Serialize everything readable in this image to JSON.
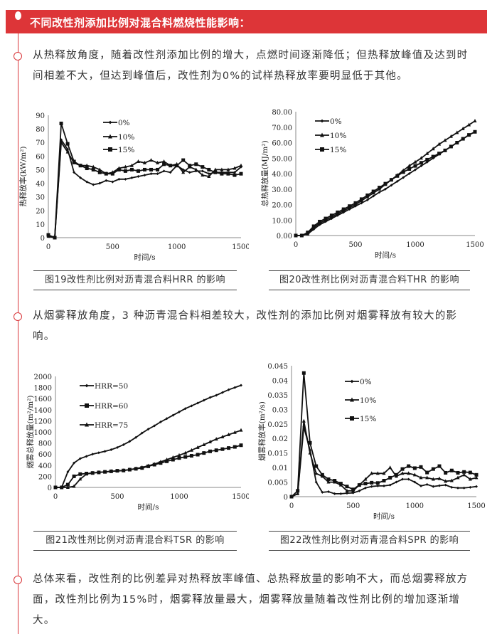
{
  "header": {
    "title": "不同改性剂添加比例对混合料燃烧性能影响："
  },
  "paragraphs": [
    "从热释放角度，随着改性剂添加比例的增大，点燃时间逐渐降低；但热释放峰值及达到时间相差不大，但达到峰值后，改性剂为0%的试样热释放率要明显低于其他。",
    "从烟雾释放角度，3 种沥青混合料相差较大，改性剂的添加比例对烟雾释放有较大的影响。",
    "总体来看，改性剂的比例差异对热释放率峰值、总热释放量的影响不大，而总烟雾释放方面，改性剂比例为15%时，烟雾释放量最大，烟雾释放量随着改性剂比例的增加逐渐增大。"
  ],
  "colors": {
    "accent": "#dd3538",
    "line": "#111111"
  },
  "chart_data": [
    {
      "type": "line",
      "caption": "图19改性剂比例对沥青混合料HRR 的影响",
      "xlabel": "时间/s",
      "ylabel": "热释放率(kW/m²)",
      "xlim": [
        0,
        1500
      ],
      "ylim": [
        0,
        90
      ],
      "xticks": [
        "0",
        "500",
        "1000",
        "1500"
      ],
      "yticks": [
        "0",
        "10",
        "20",
        "30",
        "40",
        "50",
        "60",
        "70",
        "80",
        "90"
      ],
      "legend": "top-center",
      "x": [
        0,
        50,
        100,
        150,
        200,
        250,
        300,
        350,
        400,
        450,
        500,
        550,
        600,
        650,
        700,
        750,
        800,
        850,
        900,
        950,
        1000,
        1050,
        1100,
        1150,
        1200,
        1250,
        1300,
        1350,
        1400,
        1450,
        1500
      ],
      "series": [
        {
          "name": "0%",
          "marker": "diamond",
          "values": [
            1,
            0,
            72,
            65,
            48,
            44,
            41,
            39,
            40,
            42,
            41,
            43,
            43,
            44,
            45,
            46,
            47,
            47,
            49,
            48,
            53,
            50,
            48,
            49,
            49,
            47,
            48,
            48,
            48,
            48,
            52
          ]
        },
        {
          "name": "10%",
          "marker": "triangle",
          "values": [
            1,
            0,
            70,
            63,
            55,
            53,
            53,
            52,
            50,
            47,
            48,
            51,
            52,
            53,
            56,
            55,
            57,
            55,
            56,
            53,
            54,
            48,
            52,
            50,
            46,
            45,
            50,
            50,
            50,
            51,
            53
          ]
        },
        {
          "name": "15%",
          "marker": "square",
          "values": [
            2,
            0,
            84,
            69,
            56,
            53,
            51,
            50,
            48,
            47,
            47,
            50,
            49,
            50,
            49,
            50,
            50,
            50,
            54,
            53,
            53,
            57,
            53,
            54,
            52,
            50,
            48,
            47,
            47,
            46,
            47
          ]
        }
      ]
    },
    {
      "type": "line",
      "caption": "图20改性剂比例对沥青混合料THR 的影响",
      "xlabel": "时间/s",
      "ylabel": "总热释放量(MJ/m²)",
      "xlim": [
        0,
        1500
      ],
      "ylim": [
        0,
        80
      ],
      "xticks": [
        "0",
        "500",
        "1000",
        "1500"
      ],
      "yticks": [
        "0.00",
        "10.00",
        "20.00",
        "30.00",
        "40.00",
        "50.00",
        "60.00",
        "70.00",
        "80.00"
      ],
      "legend": "top-left",
      "x": [
        0,
        50,
        100,
        150,
        200,
        250,
        300,
        350,
        400,
        450,
        500,
        550,
        600,
        650,
        700,
        750,
        800,
        850,
        900,
        950,
        1000,
        1050,
        1100,
        1150,
        1200,
        1250,
        1300,
        1350,
        1400,
        1450,
        1500
      ],
      "series": [
        {
          "name": "0%",
          "marker": "diamond",
          "values": [
            0,
            0,
            1,
            4,
            7,
            9,
            11,
            13,
            15,
            17,
            19,
            21,
            23,
            25.5,
            28,
            30,
            32.5,
            35,
            37.5,
            40,
            42.5,
            45,
            47.5,
            50,
            52.5,
            55,
            57.5,
            60,
            62.5,
            65,
            67
          ]
        },
        {
          "name": "10%",
          "marker": "triangle",
          "values": [
            0,
            0,
            1,
            5,
            8,
            10,
            12,
            14,
            16,
            18,
            20,
            22.5,
            25,
            27.5,
            30,
            33,
            36,
            39,
            42,
            45,
            47.5,
            50,
            53,
            56,
            59,
            61.5,
            64,
            66.5,
            69,
            71.5,
            74
          ]
        },
        {
          "name": "15%",
          "marker": "square",
          "values": [
            0,
            0,
            2,
            6,
            9,
            11,
            13,
            15,
            17,
            19,
            21,
            23.5,
            26,
            28.5,
            31,
            33.5,
            36,
            38.5,
            41,
            43,
            45,
            47,
            49,
            51,
            53,
            55,
            57.5,
            60,
            62.5,
            65,
            67
          ]
        }
      ]
    },
    {
      "type": "line",
      "caption": "图21改性剂比例对沥青混合料TSR 的影响",
      "xlabel": "时间/s",
      "ylabel": "烟雾总释放量(m²/m²)",
      "xlim": [
        0,
        1500
      ],
      "ylim": [
        0,
        2000
      ],
      "xticks": [
        "0",
        "500",
        "1000",
        "1500"
      ],
      "yticks": [
        "0",
        "200",
        "400",
        "600",
        "800",
        "1000",
        "1200",
        "1400",
        "1600",
        "1800",
        "2000"
      ],
      "legend": "top-left",
      "x": [
        0,
        50,
        100,
        150,
        200,
        250,
        300,
        350,
        400,
        450,
        500,
        550,
        600,
        650,
        700,
        750,
        800,
        850,
        900,
        950,
        1000,
        1050,
        1100,
        1150,
        1200,
        1250,
        1300,
        1350,
        1400,
        1450,
        1500
      ],
      "series": [
        {
          "name": "HRR=50",
          "marker": "diamond",
          "values": [
            0,
            0,
            280,
            440,
            520,
            560,
            600,
            625,
            650,
            680,
            720,
            770,
            830,
            900,
            980,
            1050,
            1110,
            1180,
            1240,
            1300,
            1360,
            1420,
            1470,
            1520,
            1570,
            1620,
            1660,
            1710,
            1760,
            1800,
            1840
          ]
        },
        {
          "name": "HRR=60",
          "marker": "square",
          "values": [
            0,
            0,
            50,
            200,
            240,
            250,
            260,
            270,
            280,
            290,
            300,
            305,
            320,
            335,
            350,
            380,
            410,
            440,
            470,
            500,
            530,
            550,
            570,
            590,
            620,
            650,
            670,
            690,
            710,
            730,
            760
          ]
        },
        {
          "name": "HRR=75",
          "marker": "triangle",
          "values": [
            0,
            0,
            0,
            20,
            150,
            240,
            260,
            270,
            280,
            290,
            295,
            305,
            320,
            340,
            360,
            390,
            420,
            460,
            500,
            540,
            580,
            620,
            670,
            720,
            770,
            820,
            870,
            910,
            950,
            990,
            1030
          ]
        }
      ]
    },
    {
      "type": "line",
      "caption": "图22改性剂比例对沥青混合料SPR 的影响",
      "xlabel": "时间/s",
      "ylabel": "烟雾释放率(m²/s)",
      "xlim": [
        0,
        1500
      ],
      "ylim": [
        0,
        0.045
      ],
      "xticks": [
        "0",
        "500",
        "1000",
        "1500"
      ],
      "yticks": [
        "0",
        "0.005",
        "0.01",
        "0.015",
        "0.02",
        "0.025",
        "0.03",
        "0.035",
        "0.04",
        "0.045"
      ],
      "legend": "top-center",
      "x": [
        0,
        50,
        100,
        150,
        200,
        250,
        300,
        350,
        400,
        450,
        500,
        550,
        600,
        650,
        700,
        750,
        800,
        850,
        900,
        950,
        1000,
        1050,
        1100,
        1150,
        1200,
        1250,
        1300,
        1350,
        1400,
        1450,
        1500
      ],
      "series": [
        {
          "name": "0%",
          "marker": "diamond",
          "values": [
            0,
            0.001,
            0.024,
            0.016,
            0.005,
            0.0015,
            0.0017,
            0.001,
            0.001,
            0.0012,
            0.0013,
            0.002,
            0.003,
            0.0035,
            0.0037,
            0.0037,
            0.004,
            0.005,
            0.006,
            0.006,
            0.005,
            0.0037,
            0.0042,
            0.0035,
            0.0038,
            0.004,
            0.0032,
            0.003,
            0.003,
            0.0032,
            0.0035
          ]
        },
        {
          "name": "10%",
          "marker": "triangle",
          "values": [
            0,
            0.001,
            0.026,
            0.015,
            0.008,
            0.007,
            0.005,
            0.005,
            0.004,
            0.002,
            0.002,
            0.004,
            0.006,
            0.008,
            0.008,
            0.008,
            0.01,
            0.007,
            0.008,
            0.008,
            0.0075,
            0.0065,
            0.0065,
            0.006,
            0.0062,
            0.0053,
            0.0055,
            0.0065,
            0.0075,
            0.006,
            0.0065
          ]
        },
        {
          "name": "15%",
          "marker": "square",
          "values": [
            0,
            0.002,
            0.0425,
            0.0185,
            0.0105,
            0.0075,
            0.006,
            0.0055,
            0.0045,
            0.0035,
            0.0025,
            0.004,
            0.0045,
            0.0048,
            0.0047,
            0.0055,
            0.0065,
            0.0075,
            0.0095,
            0.0105,
            0.0098,
            0.0102,
            0.0083,
            0.0095,
            0.0105,
            0.0082,
            0.009,
            0.0082,
            0.0085,
            0.0083,
            0.0075
          ]
        }
      ]
    }
  ]
}
